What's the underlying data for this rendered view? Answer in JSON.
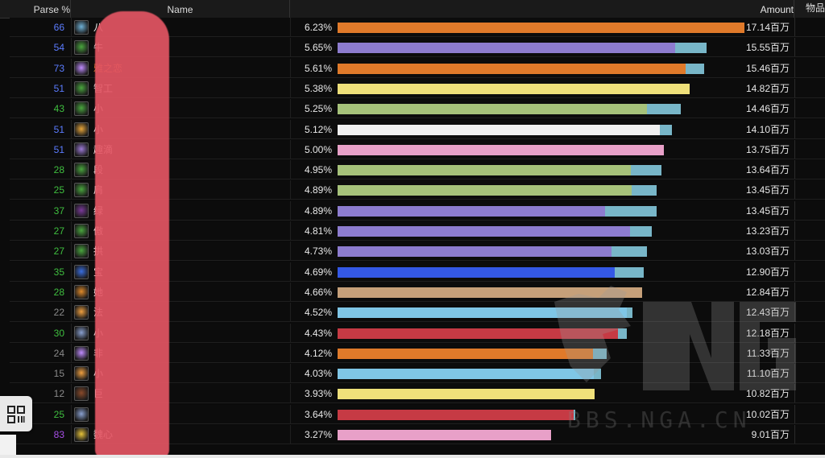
{
  "header": {
    "parse": "Parse %",
    "name": "Name",
    "amount": "Amount",
    "items": "物品"
  },
  "rows": [
    {
      "parse": "66",
      "parse_color": "#5b7cff",
      "icon": "frost-icon",
      "icon_color": "#6fb1d6",
      "name": "八",
      "name_color": "#ffffff",
      "pct": "6.23%",
      "amount": "17.14百万",
      "main_value": 17.14,
      "extra_value": 0,
      "bar_color": "#e07a2a"
    },
    {
      "parse": "54",
      "parse_color": "#5b7cff",
      "icon": "nature-icon",
      "icon_color": "#4aa63e",
      "name": "牛",
      "name_color": "#ffffff",
      "pct": "5.65%",
      "amount": "15.55百万",
      "main_value": 14.22,
      "extra_value": 1.33,
      "bar_color": "#8d7ccf"
    },
    {
      "parse": "73",
      "parse_color": "#5b7cff",
      "icon": "arcane-icon",
      "icon_color": "#c08cff",
      "name": "雅之恋",
      "name_color": "#e07a2a",
      "pct": "5.61%",
      "amount": "15.46百万",
      "main_value": 14.67,
      "extra_value": 0.79,
      "bar_color": "#e07a2a"
    },
    {
      "parse": "51",
      "parse_color": "#5b7cff",
      "icon": "nature-icon",
      "icon_color": "#4aa63e",
      "name": "智工",
      "name_color": "#ffffff",
      "pct": "5.38%",
      "amount": "14.82百万",
      "main_value": 14.82,
      "extra_value": 0,
      "bar_color": "#efe07a"
    },
    {
      "parse": "43",
      "parse_color": "#3fbf3f",
      "icon": "nature-icon",
      "icon_color": "#4aa63e",
      "name": "小",
      "name_color": "#ffffff",
      "pct": "5.25%",
      "amount": "14.46百万",
      "main_value": 13.05,
      "extra_value": 1.41,
      "bar_color": "#a6c27a"
    },
    {
      "parse": "51",
      "parse_color": "#5b7cff",
      "icon": "skull-icon",
      "icon_color": "#e7a53a",
      "name": "小",
      "name_color": "#ffffff",
      "pct": "5.12%",
      "amount": "14.10百万",
      "main_value": 13.58,
      "extra_value": 0.52,
      "bar_color": "#f0f0f0"
    },
    {
      "parse": "51",
      "parse_color": "#5b7cff",
      "icon": "arcane-icon",
      "icon_color": "#9d7ad6",
      "name": "趣滴",
      "name_color": "#ffffff",
      "pct": "5.00%",
      "amount": "13.75百万",
      "main_value": 13.75,
      "extra_value": 0,
      "bar_color": "#e8a0c8"
    },
    {
      "parse": "28",
      "parse_color": "#3fbf3f",
      "icon": "nature-icon",
      "icon_color": "#4aa63e",
      "name": "段",
      "name_color": "#ffffff",
      "pct": "4.95%",
      "amount": "13.64百万",
      "main_value": 12.35,
      "extra_value": 1.29,
      "bar_color": "#a6c27a"
    },
    {
      "parse": "25",
      "parse_color": "#3fbf3f",
      "icon": "nature-icon",
      "icon_color": "#4aa63e",
      "name": "肩",
      "name_color": "#ffffff",
      "pct": "4.89%",
      "amount": "13.45百万",
      "main_value": 12.39,
      "extra_value": 1.06,
      "bar_color": "#a6c27a"
    },
    {
      "parse": "37",
      "parse_color": "#3fbf3f",
      "icon": "demon-icon",
      "icon_color": "#7a3a9a",
      "name": "绿",
      "name_color": "#ffffff",
      "pct": "4.89%",
      "amount": "13.45百万",
      "main_value": 11.27,
      "extra_value": 2.18,
      "bar_color": "#8d7ccf"
    },
    {
      "parse": "27",
      "parse_color": "#3fbf3f",
      "icon": "nature-icon",
      "icon_color": "#4aa63e",
      "name": "傲",
      "name_color": "#ffffff",
      "pct": "4.81%",
      "amount": "13.23百万",
      "main_value": 12.32,
      "extra_value": 0.91,
      "bar_color": "#8d7ccf"
    },
    {
      "parse": "27",
      "parse_color": "#3fbf3f",
      "icon": "nature-icon",
      "icon_color": "#4aa63e",
      "name": "拱",
      "name_color": "#ffffff",
      "pct": "4.73%",
      "amount": "13.03百万",
      "main_value": 11.55,
      "extra_value": 1.48,
      "bar_color": "#8d7ccf"
    },
    {
      "parse": "35",
      "parse_color": "#3fbf3f",
      "icon": "lightning-icon",
      "icon_color": "#3a6ee0",
      "name": "宝",
      "name_color": "#ffffff",
      "pct": "4.69%",
      "amount": "12.90百万",
      "main_value": 11.68,
      "extra_value": 1.22,
      "bar_color": "#3458e6"
    },
    {
      "parse": "28",
      "parse_color": "#3fbf3f",
      "icon": "fire-icon",
      "icon_color": "#e08a2a",
      "name": "她",
      "name_color": "#ffffff",
      "pct": "4.66%",
      "amount": "12.84百万",
      "main_value": 12.84,
      "extra_value": 0,
      "bar_color": "#c6a07a"
    },
    {
      "parse": "22",
      "parse_color": "#8a8a8a",
      "icon": "fire-icon",
      "icon_color": "#f0a040",
      "name": "法",
      "name_color": "#ffffff",
      "pct": "4.52%",
      "amount": "12.43百万",
      "main_value": 12.18,
      "extra_value": 0.25,
      "bar_color": "#7fc6e6"
    },
    {
      "parse": "30",
      "parse_color": "#3fbf3f",
      "icon": "frost-icon",
      "icon_color": "#8aa0d0",
      "name": "小",
      "name_color": "#ffffff",
      "pct": "4.43%",
      "amount": "12.18百万",
      "main_value": 11.82,
      "extra_value": 0.36,
      "bar_color": "#c63a44"
    },
    {
      "parse": "24",
      "parse_color": "#8a8a8a",
      "icon": "arcane-icon",
      "icon_color": "#c08cff",
      "name": "非",
      "name_color": "#ffffff",
      "pct": "4.12%",
      "amount": "11.33百万",
      "main_value": 10.75,
      "extra_value": 0.58,
      "bar_color": "#e07a2a"
    },
    {
      "parse": "15",
      "parse_color": "#8a8a8a",
      "icon": "fire-icon",
      "icon_color": "#f0a040",
      "name": "小",
      "name_color": "#ffffff",
      "pct": "4.03%",
      "amount": "11.10百万",
      "main_value": 10.8,
      "extra_value": 0.3,
      "bar_color": "#7fc6e6"
    },
    {
      "parse": "12",
      "parse_color": "#8a8a8a",
      "icon": "blood-icon",
      "icon_color": "#8a4a2a",
      "name": "巨",
      "name_color": "#ffffff",
      "pct": "3.93%",
      "amount": "10.82百万",
      "main_value": 10.82,
      "extra_value": 0,
      "bar_color": "#efe07a"
    },
    {
      "parse": "25",
      "parse_color": "#3fbf3f",
      "icon": "frost-icon",
      "icon_color": "#8aa0d0",
      "name": "",
      "name_color": "#ffffff",
      "pct": "3.64%",
      "amount": "10.02百万",
      "main_value": 9.95,
      "extra_value": 0.07,
      "bar_color": "#c63a44"
    },
    {
      "parse": "83",
      "parse_color": "#a64ee6",
      "icon": "holy-icon",
      "icon_color": "#e7c33a",
      "name": "魏心",
      "name_color": "#ffffff",
      "pct": "3.27%",
      "amount": "9.01百万",
      "main_value": 9.01,
      "extra_value": 0,
      "bar_color": "#e8a0c8"
    }
  ],
  "scale_max": 17.14,
  "watermark": {
    "logo": "NGA",
    "url": "BBS.NGA.CN"
  }
}
